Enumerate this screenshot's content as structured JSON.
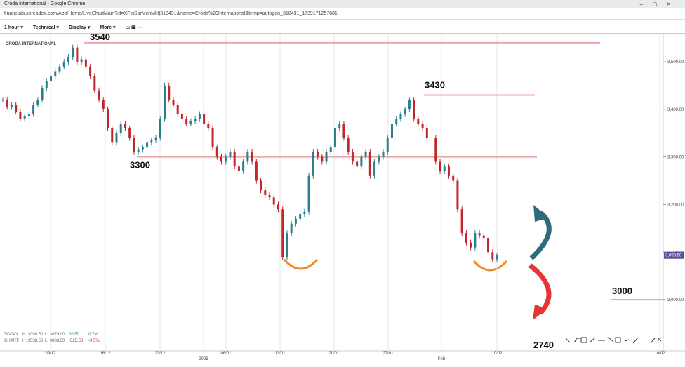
{
  "window": {
    "title": "Croda International - Google Chrome",
    "url": "financials.spreadex.com/App/Home/LiveChartMain?id=XFinSprMchMkt|318431&name=Croda%20International&temp=autogen_318431_1739171257681"
  },
  "toolbar": [
    "1 hour",
    "Technical",
    "Display",
    "More"
  ],
  "chart_data": {
    "type": "candlestick",
    "title": "CRODA INTERNATIONAL",
    "closes": [
      3420,
      3405,
      3410,
      3395,
      3380,
      3385,
      3390,
      3410,
      3420,
      3445,
      3460,
      3470,
      3480,
      3490,
      3500,
      3510,
      3530,
      3500,
      3505,
      3490,
      3470,
      3440,
      3420,
      3400,
      3360,
      3330,
      3350,
      3370,
      3360,
      3340,
      3310,
      3315,
      3320,
      3330,
      3335,
      3340,
      3380,
      3450,
      3420,
      3410,
      3390,
      3380,
      3370,
      3375,
      3380,
      3390,
      3370,
      3360,
      3320,
      3300,
      3290,
      3300,
      3310,
      3280,
      3270,
      3290,
      3310,
      3290,
      3250,
      3230,
      3220,
      3215,
      3200,
      3190,
      3090,
      3140,
      3160,
      3170,
      3180,
      3185,
      3260,
      3310,
      3300,
      3290,
      3310,
      3320,
      3360,
      3370,
      3340,
      3310,
      3290,
      3280,
      3300,
      3310,
      3260,
      3290,
      3300,
      3310,
      3340,
      3370,
      3380,
      3390,
      3400,
      3420,
      3380,
      3370,
      3360,
      3340,
      null,
      3290,
      3270,
      3280,
      3260,
      3250,
      3190,
      3140,
      3120,
      3110,
      3140,
      3135,
      3130,
      3100,
      3085,
      3093.5
    ],
    "up_color": "#2a7f8a",
    "down_color": "#c0272d",
    "ylim": [
      2897,
      3556
    ],
    "yticks": [
      {
        "value": 3000,
        "label": "3,000.00"
      },
      {
        "value": 3100,
        "label": "3,100.00"
      },
      {
        "value": 3200,
        "label": "3,200.00"
      },
      {
        "value": 3300,
        "label": "3,300.00"
      },
      {
        "value": 3400,
        "label": "3,400.00"
      },
      {
        "value": 3500,
        "label": "3,500.00"
      }
    ],
    "xtick_labels": [
      "09/12",
      "16/12",
      "23/12",
      "06/01",
      "13/01",
      "20/01",
      "27/01",
      "10/02",
      "16/02"
    ],
    "period_labels": [
      "2025",
      "Feb"
    ],
    "last_price": {
      "value": 3093.5,
      "label": "3,093.50"
    },
    "levels": [
      3540,
      3430,
      3300,
      3000
    ],
    "level_color": "#f2a5a8",
    "target_label": 2740,
    "stats": [
      [
        "TODAY:",
        "H: 3099.50",
        "L: 3079.00",
        "20.50",
        "0.7%"
      ],
      [
        "CHART:",
        "H: 3538.50",
        "L: 3068.50",
        "-325.50",
        "-9.5%"
      ]
    ]
  }
}
